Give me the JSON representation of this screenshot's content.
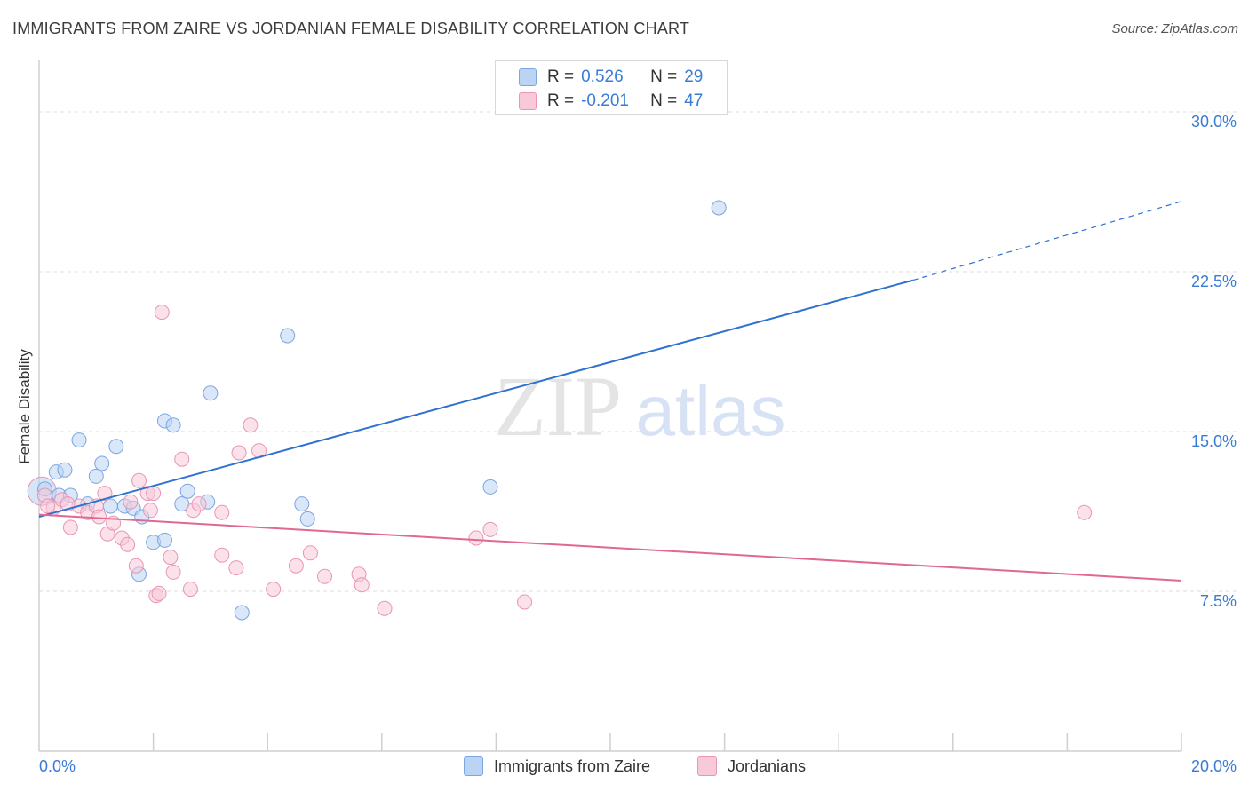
{
  "title": "IMMIGRANTS FROM ZAIRE VS JORDANIAN FEMALE DISABILITY CORRELATION CHART",
  "source": "Source: ZipAtlas.com",
  "watermark": {
    "zip": "ZIP",
    "atlas": "atlas"
  },
  "colors": {
    "blue_fill": "#bcd4f3",
    "blue_stroke": "#7aa6e2",
    "blue_line": "#2f72d0",
    "pink_fill": "#f8c9d8",
    "pink_stroke": "#e995b3",
    "pink_line": "#e06893",
    "axis_label": "#3a7bd5",
    "grid": "#dddddd"
  },
  "legend_top": {
    "series": [
      {
        "r_label": "R =",
        "r_value": "0.526",
        "n_label": "N =",
        "n_value": "29"
      },
      {
        "r_label": "R =",
        "r_value": "-0.201",
        "n_label": "N =",
        "n_value": "47"
      }
    ]
  },
  "chart_data": {
    "type": "scatter",
    "title": "IMMIGRANTS FROM ZAIRE VS JORDANIAN FEMALE DISABILITY CORRELATION CHART",
    "xlabel": "",
    "ylabel": "Female Disability",
    "xlim": [
      0,
      20
    ],
    "ylim": [
      0,
      32
    ],
    "x_tick_labels": [
      "0.0%",
      "20.0%"
    ],
    "y_ticks": [
      7.5,
      15.0,
      22.5,
      30.0
    ],
    "y_tick_labels": [
      "7.5%",
      "15.0%",
      "22.5%",
      "30.0%"
    ],
    "grid": true,
    "legend": "top-center",
    "series": [
      {
        "name": "Immigrants from Zaire",
        "color": "blue",
        "points": [
          [
            0.1,
            12.3
          ],
          [
            0.3,
            13.1
          ],
          [
            0.45,
            13.2
          ],
          [
            0.35,
            12.0
          ],
          [
            0.7,
            14.6
          ],
          [
            1.0,
            12.9
          ],
          [
            1.1,
            13.5
          ],
          [
            1.35,
            14.3
          ],
          [
            0.85,
            11.6
          ],
          [
            1.25,
            11.5
          ],
          [
            1.5,
            11.5
          ],
          [
            1.65,
            11.4
          ],
          [
            1.8,
            11.0
          ],
          [
            2.2,
            15.5
          ],
          [
            2.35,
            15.3
          ],
          [
            2.5,
            11.6
          ],
          [
            2.6,
            12.2
          ],
          [
            2.95,
            11.7
          ],
          [
            3.0,
            16.8
          ],
          [
            1.75,
            8.3
          ],
          [
            2.0,
            9.8
          ],
          [
            2.2,
            9.9
          ],
          [
            3.55,
            6.5
          ],
          [
            4.35,
            19.5
          ],
          [
            4.6,
            11.6
          ],
          [
            4.7,
            10.9
          ],
          [
            7.9,
            12.4
          ],
          [
            11.9,
            25.5
          ],
          [
            0.55,
            12.0
          ]
        ],
        "trend": {
          "x0": 0.0,
          "y0": 11.0,
          "x1": 15.3,
          "y1": 22.1,
          "dash_to_x": 20.0,
          "dash_to_y": 25.8
        }
      },
      {
        "name": "Jordanians",
        "color": "pink",
        "points": [
          [
            0.1,
            12.0
          ],
          [
            0.25,
            11.4
          ],
          [
            0.4,
            11.8
          ],
          [
            0.55,
            10.5
          ],
          [
            0.7,
            11.5
          ],
          [
            0.85,
            11.2
          ],
          [
            1.0,
            11.5
          ],
          [
            1.05,
            11.0
          ],
          [
            1.15,
            12.1
          ],
          [
            1.2,
            10.2
          ],
          [
            1.3,
            10.7
          ],
          [
            1.45,
            10.0
          ],
          [
            1.55,
            9.7
          ],
          [
            1.6,
            11.7
          ],
          [
            1.7,
            8.7
          ],
          [
            1.75,
            12.7
          ],
          [
            1.9,
            12.1
          ],
          [
            1.95,
            11.3
          ],
          [
            2.0,
            12.1
          ],
          [
            2.05,
            7.3
          ],
          [
            2.1,
            7.4
          ],
          [
            2.15,
            20.6
          ],
          [
            2.3,
            9.1
          ],
          [
            2.35,
            8.4
          ],
          [
            2.5,
            13.7
          ],
          [
            2.65,
            7.6
          ],
          [
            2.7,
            11.3
          ],
          [
            2.8,
            11.6
          ],
          [
            3.2,
            11.2
          ],
          [
            3.2,
            9.2
          ],
          [
            3.45,
            8.6
          ],
          [
            3.5,
            14.0
          ],
          [
            3.7,
            15.3
          ],
          [
            3.85,
            14.1
          ],
          [
            4.1,
            7.6
          ],
          [
            4.5,
            8.7
          ],
          [
            4.75,
            9.3
          ],
          [
            5.0,
            8.2
          ],
          [
            5.6,
            8.3
          ],
          [
            5.65,
            7.8
          ],
          [
            6.05,
            6.7
          ],
          [
            7.65,
            10.0
          ],
          [
            7.9,
            10.4
          ],
          [
            8.5,
            7.0
          ],
          [
            18.3,
            11.2
          ],
          [
            0.15,
            11.5
          ],
          [
            0.5,
            11.6
          ]
        ],
        "trend": {
          "x0": 0.0,
          "y0": 11.1,
          "x1": 20.0,
          "y1": 8.0
        }
      }
    ]
  },
  "legend_bottom": {
    "items": [
      {
        "label": "Immigrants from Zaire"
      },
      {
        "label": "Jordanians"
      }
    ]
  }
}
